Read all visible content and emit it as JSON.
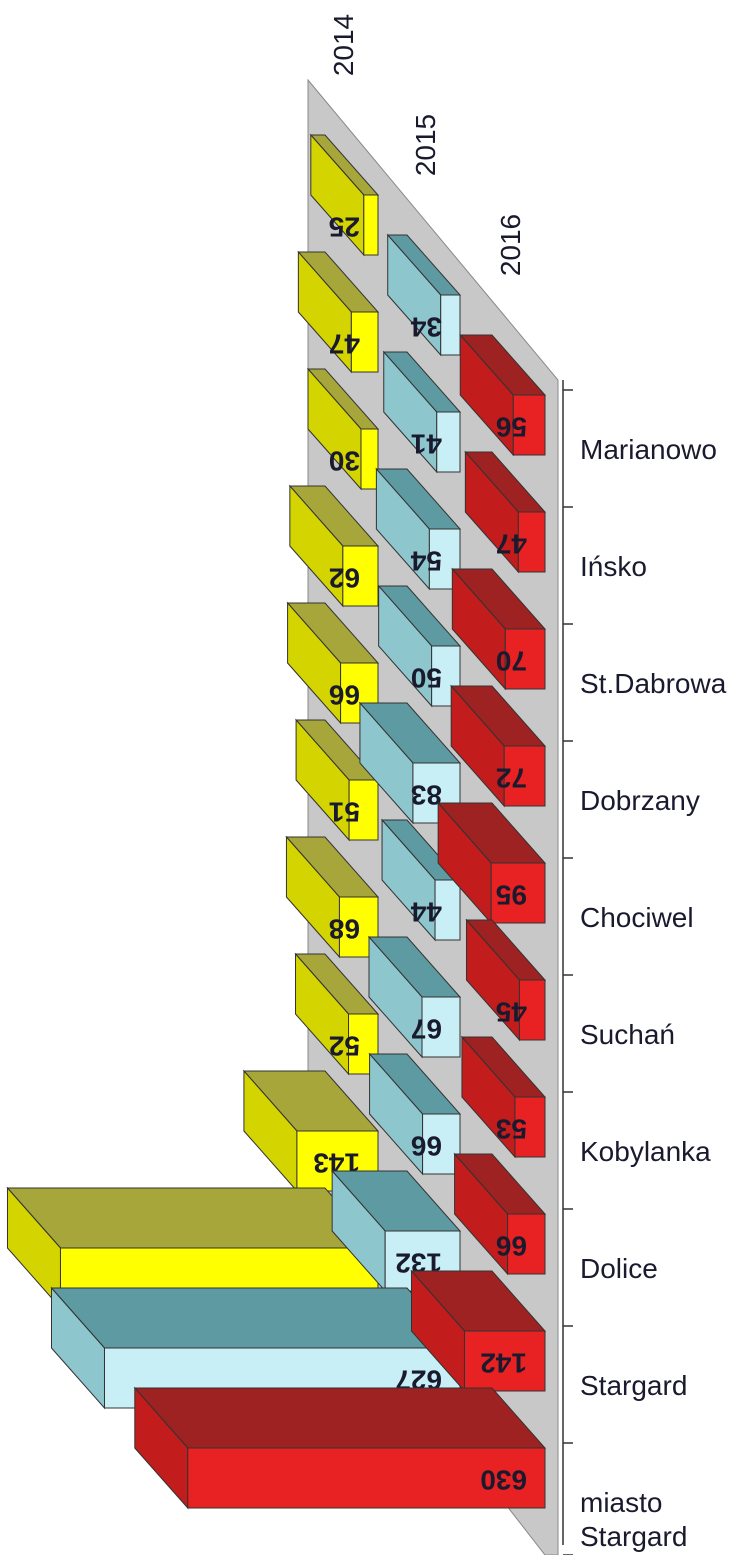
{
  "chart_data": {
    "type": "bar3d",
    "categories": [
      "Marianowo",
      "Ińsko",
      "St.Dabrowa",
      "Dobrzany",
      "Chociwel",
      "Suchań",
      "Kobylanka",
      "Dolice",
      "Stargard",
      "miasto Stargard"
    ],
    "series": [
      {
        "name": "2014",
        "color": "#ffff00",
        "values": [
          25,
          47,
          30,
          62,
          66,
          51,
          68,
          52,
          143,
          560
        ],
        "value_labels": [
          "25",
          "47",
          "30",
          "62",
          "66",
          "51",
          "68",
          "52",
          "143",
          null
        ]
      },
      {
        "name": "2015",
        "color": "#c8eef6",
        "values": [
          34,
          41,
          54,
          50,
          83,
          44,
          67,
          66,
          132,
          627
        ]
      },
      {
        "name": "2016",
        "color": "#e82222",
        "values": [
          56,
          47,
          70,
          72,
          95,
          45,
          53,
          66,
          142,
          630
        ]
      }
    ]
  }
}
